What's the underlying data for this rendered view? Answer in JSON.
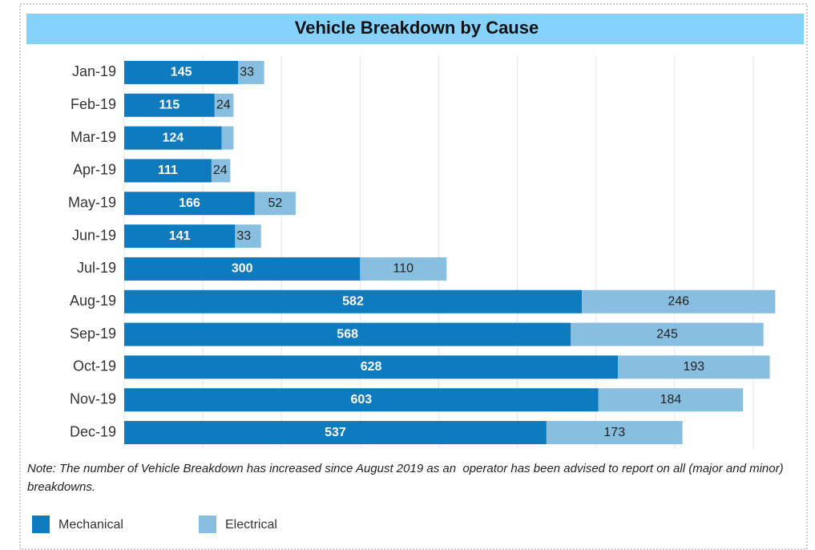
{
  "chart_data": {
    "type": "stacked-barh",
    "title": "Vehicle Breakdown by Cause",
    "categories": [
      "Jan-19",
      "Feb-19",
      "Mar-19",
      "Apr-19",
      "May-19",
      "Jun-19",
      "Jul-19",
      "Aug-19",
      "Sep-19",
      "Oct-19",
      "Nov-19",
      "Dec-19"
    ],
    "series": [
      {
        "name": "Mechanical",
        "color": "#0e7bbf",
        "values": [
          145,
          115,
          124,
          111,
          166,
          141,
          300,
          582,
          568,
          628,
          603,
          537
        ]
      },
      {
        "name": "Electrical",
        "color": "#88bfe0",
        "values": [
          33,
          24,
          15,
          24,
          52,
          33,
          110,
          246,
          245,
          193,
          184,
          173
        ],
        "value_labels": [
          "33",
          "24",
          null,
          "24",
          "52",
          "33",
          "110",
          "246",
          "245",
          "193",
          "184",
          "173"
        ]
      }
    ],
    "xlim": [
      0,
      850
    ],
    "xticks": [
      0,
      100,
      200,
      300,
      400,
      500,
      600,
      700,
      800
    ],
    "grid": true,
    "note": "Note: The number of Vehicle Breakdown has increased since August 2019 as an  operator has been advised to report on all (major and minor) breakdowns.",
    "legend": "bottom-left"
  }
}
